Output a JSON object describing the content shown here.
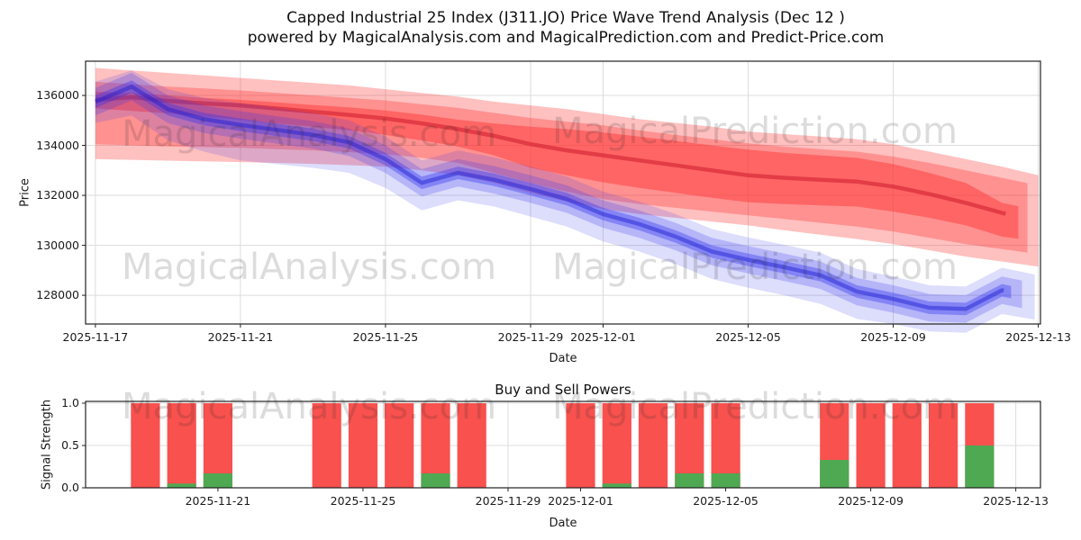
{
  "figure": {
    "title": "Capped Industrial 25 Index (J311.JO) Price Wave Trend Analysis (Dec 12 )",
    "subtitle": "powered by MagicalAnalysis.com and MagicalPrediction.com and Predict-Price.com"
  },
  "watermarks": {
    "analysis": "MagicalAnalysis.com",
    "prediction": "MagicalPrediction.com",
    "color": "rgba(40,40,40,0.16)"
  },
  "colors": {
    "red_band": "#ff3030",
    "blue_band": "#3535f0",
    "red_line": "#c81428",
    "blue_line": "#1a1ad0",
    "sell_bar": "#f8514e",
    "buy_bar": "#4fa852",
    "grid": "#dcdcdc",
    "spine": "#222222",
    "text": "#1a1a1a"
  },
  "chart_data": [
    {
      "type": "area",
      "name": "price_wave_trend",
      "ylabel": "Price",
      "xlabel": "Date",
      "ylim": [
        126850,
        137370
      ],
      "xlim_days": [
        -0.27,
        26.06
      ],
      "y_ticks": [
        128000,
        130000,
        132000,
        134000,
        136000
      ],
      "x_ticks": [
        {
          "label": "2025-11-17",
          "day": 0
        },
        {
          "label": "2025-11-21",
          "day": 4
        },
        {
          "label": "2025-11-25",
          "day": 8
        },
        {
          "label": "2025-11-29",
          "day": 12
        },
        {
          "label": "2025-12-01",
          "day": 14
        },
        {
          "label": "2025-12-05",
          "day": 18
        },
        {
          "label": "2025-12-09",
          "day": 22
        },
        {
          "label": "2025-12-13",
          "day": 26
        }
      ],
      "dates": [
        "2025-11-17",
        "2025-11-18",
        "2025-11-19",
        "2025-11-20",
        "2025-11-21",
        "2025-11-22",
        "2025-11-23",
        "2025-11-24",
        "2025-11-25",
        "2025-11-26",
        "2025-11-27",
        "2025-11-28",
        "2025-11-29",
        "2025-11-30",
        "2025-12-01",
        "2025-12-02",
        "2025-12-03",
        "2025-12-04",
        "2025-12-05",
        "2025-12-06",
        "2025-12-07",
        "2025-12-08",
        "2025-12-09",
        "2025-12-10",
        "2025-12-11",
        "2025-12-12",
        "2025-12-13"
      ],
      "red_fan": {
        "layers": [
          {
            "name": "outer",
            "opacity": 0.3,
            "end": 26.0,
            "upper": [
              137100,
              137000,
              136900,
              136800,
              136700,
              136600,
              136500,
              136400,
              136250,
              136100,
              135950,
              135750,
              135600,
              135450,
              135250,
              135050,
              134900,
              134750,
              134550,
              134450,
              134350,
              134250,
              134050,
              133750,
              133450,
              133150,
              132800
            ],
            "lower": [
              133450,
              133420,
              133390,
              133360,
              133330,
              133300,
              133260,
              133210,
              133150,
              133000,
              132800,
              132500,
              132100,
              131750,
              131450,
              131250,
              131100,
              130950,
              130800,
              130600,
              130420,
              130250,
              130050,
              129800,
              129550,
              129350,
              129150
            ]
          },
          {
            "name": "mid",
            "opacity": 0.32,
            "end": 25.7,
            "upper": [
              136550,
              136450,
              136350,
              136280,
              136200,
              136100,
              136000,
              135900,
              135800,
              135650,
              135500,
              135300,
              135100,
              134950,
              134800,
              134600,
              134420,
              134250,
              134080,
              133950,
              133850,
              133750,
              133550,
              133300,
              133000,
              132700,
              132400
            ],
            "lower": [
              134050,
              134000,
              133960,
              133930,
              133900,
              133850,
              133800,
              133730,
              133650,
              133500,
              133300,
              132900,
              132500,
              132150,
              131850,
              131650,
              131500,
              131350,
              131200,
              131050,
              130900,
              130750,
              130550,
              130300,
              130050,
              129850,
              129650
            ]
          },
          {
            "name": "inner",
            "opacity": 0.45,
            "end": 25.45,
            "upper": [
              136150,
              136100,
              136000,
              135900,
              135820,
              135720,
              135620,
              135520,
              135400,
              135230,
              135030,
              134880,
              134750,
              134650,
              134520,
              134350,
              134180,
              134000,
              133830,
              133700,
              133600,
              133500,
              133250,
              132900,
              132500,
              131700,
              131400
            ],
            "lower": [
              135480,
              135380,
              135280,
              135150,
              135020,
              134880,
              134750,
              134600,
              134420,
              134200,
              133950,
              133600,
              133100,
              132800,
              132520,
              132300,
              132100,
              131900,
              131720,
              131650,
              131600,
              131550,
              131350,
              131100,
              130800,
              130350,
              130150
            ]
          }
        ],
        "center": {
          "opacity": 0.5,
          "width": 4.5,
          "end": 25.1,
          "values": [
            135820,
            135930,
            135780,
            135680,
            135600,
            135480,
            135350,
            135220,
            135080,
            134880,
            134650,
            134380,
            134050,
            133800,
            133600,
            133400,
            133200,
            133000,
            132800,
            132700,
            132620,
            132550,
            132350,
            132050,
            131700,
            131300,
            130900
          ]
        }
      },
      "blue_fan": {
        "layers": [
          {
            "name": "outer",
            "opacity": 0.17,
            "end": 25.9,
            "upper": [
              136550,
              137000,
              136250,
              135900,
              135700,
              135500,
              135300,
              135000,
              134350,
              133400,
              133800,
              133520,
              133150,
              132750,
              132150,
              131750,
              131250,
              130650,
              130320,
              130020,
              129700,
              129050,
              128750,
              128400,
              128350,
              129100,
              128800
            ],
            "lower": [
              134900,
              135200,
              134200,
              133750,
              133400,
              133250,
              133100,
              132900,
              132300,
              131400,
              131800,
              131550,
              131150,
              130750,
              130150,
              129750,
              129250,
              128650,
              128300,
              128000,
              127650,
              127050,
              126850,
              126550,
              126500,
              127250,
              127000
            ]
          },
          {
            "name": "mid",
            "opacity": 0.24,
            "end": 25.55,
            "upper": [
              136300,
              136900,
              136000,
              135600,
              135370,
              135170,
              134970,
              134670,
              134000,
              133050,
              133450,
              133170,
              132800,
              132400,
              131800,
              131400,
              130900,
              130300,
              129970,
              129670,
              129350,
              128700,
              128400,
              128050,
              128000,
              128750,
              128450
            ],
            "lower": [
              135200,
              135800,
              134900,
              134500,
              134270,
              134070,
              133870,
              133570,
              132900,
              131950,
              132350,
              132070,
              131700,
              131300,
              130700,
              130300,
              129800,
              129200,
              128870,
              128570,
              128250,
              127600,
              127300,
              126950,
              126900,
              127650,
              127350
            ]
          },
          {
            "name": "inner",
            "opacity": 0.38,
            "end": 25.25,
            "upper": [
              136000,
              136600,
              135700,
              135300,
              135070,
              134870,
              134670,
              134370,
              133700,
              132750,
              133150,
              132870,
              132500,
              132100,
              131500,
              131100,
              130600,
              130000,
              129670,
              129370,
              129050,
              128400,
              128100,
              127750,
              127700,
              128450,
              128150
            ],
            "lower": [
              135500,
              136100,
              135200,
              134800,
              134570,
              134370,
              134170,
              133870,
              133200,
              132250,
              132650,
              132370,
              132000,
              131600,
              131000,
              130600,
              130100,
              129500,
              129170,
              128870,
              128550,
              127900,
              127600,
              127250,
              127200,
              127950,
              127650
            ]
          }
        ],
        "center": {
          "opacity": 0.45,
          "width": 4.5,
          "end": 25.05,
          "values": [
            135750,
            136350,
            135450,
            135050,
            134820,
            134620,
            134420,
            134120,
            133450,
            132500,
            132900,
            132620,
            132250,
            131850,
            131250,
            130850,
            130350,
            129750,
            129420,
            129120,
            128800,
            128150,
            127850,
            127500,
            127450,
            128200,
            127900
          ]
        }
      }
    },
    {
      "type": "bar",
      "name": "buy_sell_powers",
      "title": "Buy and Sell Powers",
      "ylabel": "Signal Strength",
      "xlabel": "Date",
      "ylim": [
        0,
        1.021
      ],
      "xlim_days": [
        0.35,
        26.68
      ],
      "bar_width_days": 0.8,
      "y_ticks": [
        0.0,
        0.5,
        1.0
      ],
      "x_ticks": [
        {
          "label": "2025-11-21",
          "day": 4
        },
        {
          "label": "2025-11-25",
          "day": 8
        },
        {
          "label": "2025-11-29",
          "day": 12
        },
        {
          "label": "2025-12-01",
          "day": 14
        },
        {
          "label": "2025-12-05",
          "day": 18
        },
        {
          "label": "2025-12-09",
          "day": 22
        },
        {
          "label": "2025-12-13",
          "day": 26
        }
      ],
      "bars": [
        {
          "date": "2025-11-19",
          "day": 2,
          "sell": 1.0,
          "buy": 0.0
        },
        {
          "date": "2025-11-20",
          "day": 3,
          "sell": 1.0,
          "buy": 0.05
        },
        {
          "date": "2025-11-21",
          "day": 4,
          "sell": 1.0,
          "buy": 0.17
        },
        {
          "date": "2025-11-24",
          "day": 7,
          "sell": 1.0,
          "buy": 0.0
        },
        {
          "date": "2025-11-25",
          "day": 8,
          "sell": 1.0,
          "buy": 0.0
        },
        {
          "date": "2025-11-26",
          "day": 9,
          "sell": 1.0,
          "buy": 0.0
        },
        {
          "date": "2025-11-27",
          "day": 10,
          "sell": 1.0,
          "buy": 0.17
        },
        {
          "date": "2025-11-28",
          "day": 11,
          "sell": 1.0,
          "buy": 0.0
        },
        {
          "date": "2025-12-01",
          "day": 14,
          "sell": 1.0,
          "buy": 0.0
        },
        {
          "date": "2025-12-02",
          "day": 15,
          "sell": 1.0,
          "buy": 0.05
        },
        {
          "date": "2025-12-03",
          "day": 16,
          "sell": 1.0,
          "buy": 0.0
        },
        {
          "date": "2025-12-04",
          "day": 17,
          "sell": 1.0,
          "buy": 0.17
        },
        {
          "date": "2025-12-05",
          "day": 18,
          "sell": 1.0,
          "buy": 0.17
        },
        {
          "date": "2025-12-08",
          "day": 21,
          "sell": 1.0,
          "buy": 0.33
        },
        {
          "date": "2025-12-09",
          "day": 22,
          "sell": 1.0,
          "buy": 0.0
        },
        {
          "date": "2025-12-10",
          "day": 23,
          "sell": 1.0,
          "buy": 0.0
        },
        {
          "date": "2025-12-11",
          "day": 24,
          "sell": 1.0,
          "buy": 0.0
        },
        {
          "date": "2025-12-12",
          "day": 25,
          "sell": 1.0,
          "buy": 0.5
        }
      ]
    }
  ]
}
